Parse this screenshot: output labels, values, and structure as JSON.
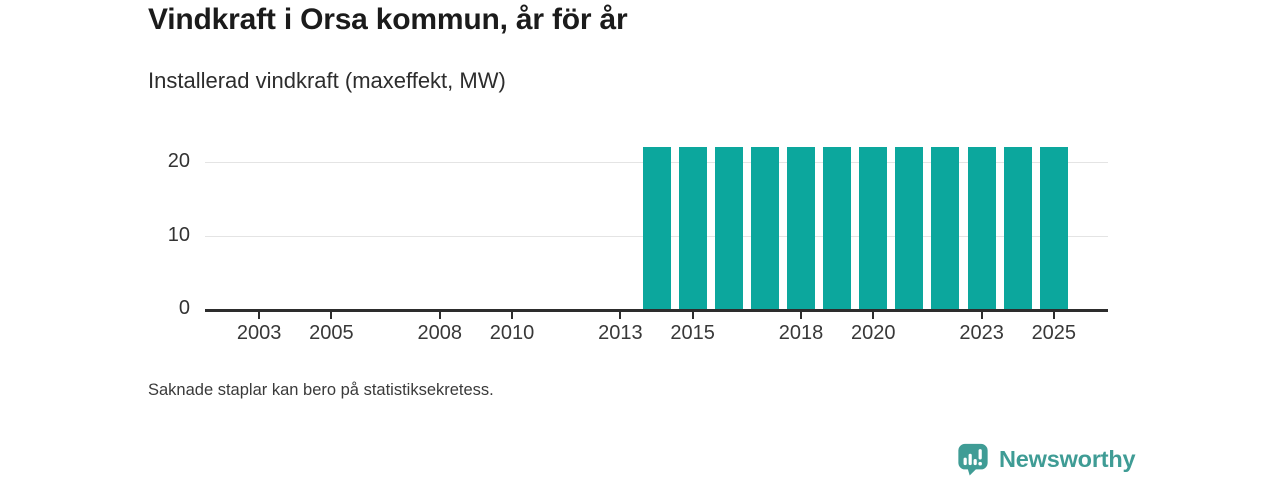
{
  "header": {
    "title": "Vindkraft i Orsa kommun, år för år",
    "subtitle": "Installerad vindkraft (maxeffekt, MW)"
  },
  "footer": {
    "note": "Saknade staplar kan bero på statistiksekretess.",
    "brand": "Newsworthy"
  },
  "colors": {
    "bar": "#0ca79d",
    "brand": "#3f9c95",
    "axis": "#2d2d2d",
    "grid": "#e4e4e4",
    "title_text": "#1b1b1b",
    "label_text": "#383838"
  },
  "chart_data": {
    "type": "bar",
    "title": "Vindkraft i Orsa kommun, år för år",
    "subtitle": "Installerad vindkraft (maxeffekt, MW)",
    "unit": "MW",
    "categories": [
      "2002",
      "2003",
      "2004",
      "2005",
      "2006",
      "2007",
      "2008",
      "2009",
      "2010",
      "2011",
      "2012",
      "2013",
      "2014",
      "2015",
      "2016",
      "2017",
      "2018",
      "2019",
      "2020",
      "2021",
      "2022",
      "2023",
      "2024",
      "2025"
    ],
    "values": [
      null,
      null,
      null,
      null,
      null,
      null,
      null,
      null,
      null,
      null,
      null,
      null,
      22,
      22,
      22,
      22,
      22,
      22,
      22,
      22,
      22,
      22,
      22,
      22
    ],
    "x_tick_labels": [
      "2003",
      "2005",
      "2008",
      "2010",
      "2013",
      "2015",
      "2018",
      "2020",
      "2023",
      "2025"
    ],
    "y_ticks": [
      0,
      10,
      20
    ],
    "ylim": [
      0,
      23
    ],
    "xlabel": "",
    "ylabel": "",
    "grid": "horizontal",
    "legend": "none",
    "annotation": "Saknade staplar kan bero på statistiksekretess."
  }
}
